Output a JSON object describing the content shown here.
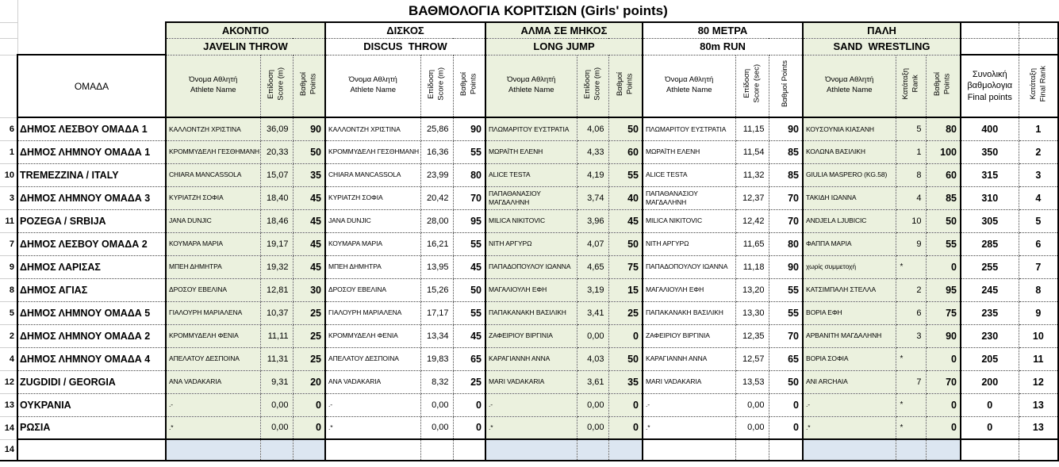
{
  "title": "ΒΑΘΜΟΛΟΓΙΑ ΚΟΡΙΤΣΙΩΝ (Girls' points)",
  "colors": {
    "group_fill": "#EBF1DE",
    "bottom_row_fill": "#DCE6F1"
  },
  "groups": [
    {
      "el": "ΑΚΟΝΤΙΟ",
      "en": "JAVELIN THROW"
    },
    {
      "el": "ΔΙΣΚΟΣ",
      "en": "DISCUS  THROW"
    },
    {
      "el": "ΑΛΜΑ ΣΕ ΜΗΚΟΣ",
      "en": "LONG JUMP"
    },
    {
      "el": "80 ΜΕΤΡΑ",
      "en": "80m RUN"
    },
    {
      "el": "ΠΑΛΗ",
      "en": "SAND  WRESTLING"
    }
  ],
  "headers": {
    "team": "ΟΜΑΔΑ",
    "athlete_name": "Όνομα Αθλητή\nAthlete Name",
    "score_m": "Επίδοση\nScore (m)",
    "score_sec": "Επίδοση\nScore (sec)",
    "points": "Βαθμοί\nPoints",
    "points_single": "Βαθμοί Points",
    "rank": "Κατάταξη\nRank",
    "final_points": "Συνολική\nβαθμολογια\nFinal points",
    "final_rank": "Κατάταξη\nFinal Rank"
  },
  "rows": [
    {
      "num": "6",
      "team": "ΔΗΜΟΣ ΛΕΣΒΟΥ ΟΜΑΔΑ 1",
      "javelin": {
        "name": "ΚΑΛΛΟΝΤΖΗ ΧΡΙΣΤΙΝΑ",
        "score": "36,09",
        "points": "90"
      },
      "discus": {
        "name": "ΚΑΛΛΟΝΤΖΗ ΧΡΙΣΤΙΝΑ",
        "score": "25,86",
        "points": "90"
      },
      "long_jump": {
        "name": "ΠΛΩΜΑΡΙΤΟΥ ΕΥΣΤΡΑΤΙΑ",
        "score": "4,06",
        "points": "50"
      },
      "run_80m": {
        "name": "ΠΛΩΜΑΡΙΤΟΥ ΕΥΣΤΡΑΤΙΑ",
        "score": "11,15",
        "points": "90"
      },
      "wrestling": {
        "name": "ΚΟΥΣΟΥΝΙΑ ΚΙΑΣΑΝΗ",
        "rank": "5",
        "points": "80"
      },
      "final_points": "400",
      "final_rank": "1"
    },
    {
      "num": "1",
      "team": "ΔΗΜΟΣ ΛΗΜΝΟΥ ΟΜΑΔΑ 1",
      "javelin": {
        "name": "ΚΡΟΜΜΥΔΕΛΗ ΓΕΣΘΗΜΑΝΗ",
        "score": "20,33",
        "points": "50"
      },
      "discus": {
        "name": "ΚΡΟΜΜΥΔΕΛΗ ΓΕΣΘΗΜΑΝΗ",
        "score": "16,36",
        "points": "55"
      },
      "long_jump": {
        "name": "ΜΩΡΑΪΤΗ ΕΛΕΝΗ",
        "score": "4,33",
        "points": "60"
      },
      "run_80m": {
        "name": "ΜΩΡΑΪΤΗ ΕΛΕΝΗ",
        "score": "11,54",
        "points": "85"
      },
      "wrestling": {
        "name": "ΚΟΛΩΝΑ ΒΑΣΙΛΙΚΗ",
        "rank": "1",
        "points": "100"
      },
      "final_points": "350",
      "final_rank": "2"
    },
    {
      "num": "10",
      "team": "TREMEZZINA / ITALY",
      "javelin": {
        "name": "CHIARA MANCASSOLA",
        "score": "15,07",
        "points": "35"
      },
      "discus": {
        "name": "CHIARA MANCASSOLA",
        "score": "23,99",
        "points": "80"
      },
      "long_jump": {
        "name": "ALICE TESTA",
        "score": "4,19",
        "points": "55"
      },
      "run_80m": {
        "name": "ALICE TESTA",
        "score": "11,32",
        "points": "85"
      },
      "wrestling": {
        "name": "GIULIA MASPERO (KG.58)",
        "rank": "8",
        "points": "60"
      },
      "final_points": "315",
      "final_rank": "3"
    },
    {
      "num": "3",
      "team": "ΔΗΜΟΣ ΛΗΜΝΟΥ ΟΜΑΔΑ 3",
      "javelin": {
        "name": "ΚΥΡΙΑΤΖΗ ΣΟΦΙΑ",
        "score": "18,40",
        "points": "45"
      },
      "discus": {
        "name": "ΚΥΡΙΑΤΖΗ ΣΟΦΙΑ",
        "score": "20,42",
        "points": "70"
      },
      "long_jump": {
        "name": "ΠΑΠΑΘΑΝΑΣΙΟΥ ΜΑΓΔΑΛΗΝΗ",
        "score": "3,74",
        "points": "40"
      },
      "run_80m": {
        "name": "ΠΑΠΑΘΑΝΑΣΙΟΥ ΜΑΓΔΑΛΗΝΗ",
        "score": "12,37",
        "points": "70"
      },
      "wrestling": {
        "name": "ΤΑΚΙΔΗ ΙΩΑΝΝΑ",
        "rank": "4",
        "points": "85"
      },
      "final_points": "310",
      "final_rank": "4"
    },
    {
      "num": "11",
      "team": "POZEGA / SRBIJA",
      "javelin": {
        "name": "JANA DUNJIC",
        "score": "18,46",
        "points": "45"
      },
      "discus": {
        "name": "JANA DUNJIC",
        "score": "28,00",
        "points": "95"
      },
      "long_jump": {
        "name": "MILICA NIKITOVIC",
        "score": "3,96",
        "points": "45"
      },
      "run_80m": {
        "name": "MILICA NIKITOVIC",
        "score": "12,42",
        "points": "70"
      },
      "wrestling": {
        "name": "ANDJELA LJUBICIC",
        "rank": "10",
        "points": "50"
      },
      "final_points": "305",
      "final_rank": "5"
    },
    {
      "num": "7",
      "team": "ΔΗΜΟΣ ΛΕΣΒΟΥ ΟΜΑΔΑ 2",
      "javelin": {
        "name": "ΚΟΥΜΑΡΑ ΜΑΡΙΑ",
        "score": "19,17",
        "points": "45"
      },
      "discus": {
        "name": "ΚΟΥΜΑΡΑ ΜΑΡΙΑ",
        "score": "16,21",
        "points": "55"
      },
      "long_jump": {
        "name": "ΝΙΤΗ ΑΡΓΥΡΩ",
        "score": "4,07",
        "points": "50"
      },
      "run_80m": {
        "name": "ΝΙΤΗ ΑΡΓΥΡΩ",
        "score": "11,65",
        "points": "80"
      },
      "wrestling": {
        "name": "ΦΑΠΠΑ ΜΑΡΙΑ",
        "rank": "9",
        "points": "55"
      },
      "final_points": "285",
      "final_rank": "6"
    },
    {
      "num": "9",
      "team": "ΔΗΜΟΣ ΛΑΡΙΣΑΣ",
      "javelin": {
        "name": "ΜΠΕΗ ΔΗΜΗΤΡΑ",
        "score": "19,32",
        "points": "45"
      },
      "discus": {
        "name": "ΜΠΕΗ ΔΗΜΗΤΡΑ",
        "score": "13,95",
        "points": "45"
      },
      "long_jump": {
        "name": "ΠΑΠΑΔΟΠΟΥΛΟΥ ΙΩΑΝΝΑ",
        "score": "4,65",
        "points": "75"
      },
      "run_80m": {
        "name": "ΠΑΠΑΔΟΠΟΥΛΟΥ ΙΩΑΝΝΑ",
        "score": "11,18",
        "points": "90"
      },
      "wrestling": {
        "name": "χωρίς συμμετοχή",
        "rank": "*",
        "points": "0"
      },
      "final_points": "255",
      "final_rank": "7"
    },
    {
      "num": "8",
      "team": "ΔΗΜΟΣ ΑΓΙΑΣ",
      "javelin": {
        "name": "ΔΡΟΣΟΥ ΕΒΕΛΙΝΑ",
        "score": "12,81",
        "points": "30"
      },
      "discus": {
        "name": "ΔΡΟΣΟΥ ΕΒΕΛΙΝΑ",
        "score": "15,26",
        "points": "50"
      },
      "long_jump": {
        "name": "ΜΑΓΑΛΙΟΥΛΗ ΕΦΗ",
        "score": "3,19",
        "points": "15"
      },
      "run_80m": {
        "name": "ΜΑΓΑΛΙΟΥΛΗ ΕΦΗ",
        "score": "13,20",
        "points": "55"
      },
      "wrestling": {
        "name": "ΚΑΤΣΙΜΠΑΛΗ ΣΤΕΛΛΑ",
        "rank": "2",
        "points": "95"
      },
      "final_points": "245",
      "final_rank": "8"
    },
    {
      "num": "5",
      "team": "ΔΗΜΟΣ ΛΗΜΝΟΥ ΟΜΑΔΑ 5",
      "javelin": {
        "name": "ΓΙΑΛΟΥΡΗ ΜΑΡΙΑΛΕΝΑ",
        "score": "10,37",
        "points": "25"
      },
      "discus": {
        "name": "ΓΙΑΛΟΥΡΗ ΜΑΡΙΑΛΕΝΑ",
        "score": "17,17",
        "points": "55"
      },
      "long_jump": {
        "name": "ΠΑΠΑΚΑΝΑΚΗ ΒΑΣΙΛΙΚΗ",
        "score": "3,41",
        "points": "25"
      },
      "run_80m": {
        "name": "ΠΑΠΑΚΑΝΑΚΗ ΒΑΣΙΛΙΚΗ",
        "score": "13,30",
        "points": "55"
      },
      "wrestling": {
        "name": "ΒΟΡΙΑ ΕΦΗ",
        "rank": "6",
        "points": "75"
      },
      "final_points": "235",
      "final_rank": "9"
    },
    {
      "num": "2",
      "team": "ΔΗΜΟΣ ΛΗΜΝΟΥ ΟΜΑΔΑ 2",
      "javelin": {
        "name": "ΚΡΟΜΜΥΔΕΛΗ ΦΕΝΙΑ",
        "score": "11,11",
        "points": "25"
      },
      "discus": {
        "name": "ΚΡΟΜΜΥΔΕΛΗ ΦΕΝΙΑ",
        "score": "13,34",
        "points": "45"
      },
      "long_jump": {
        "name": "ΖΑΦΕΙΡΙΟΥ ΒΙΡΓΙΝΙΑ",
        "score": "0,00",
        "points": "0"
      },
      "run_80m": {
        "name": "ΖΑΦΕΙΡΙΟΥ ΒΙΡΓΙΝΙΑ",
        "score": "12,35",
        "points": "70"
      },
      "wrestling": {
        "name": "ΑΡΒΑΝΙΤΗ ΜΑΓΔΑΛΗΝΗ",
        "rank": "3",
        "points": "90"
      },
      "final_points": "230",
      "final_rank": "10"
    },
    {
      "num": "4",
      "team": "ΔΗΜΟΣ ΛΗΜΝΟΥ ΟΜΑΔΑ 4",
      "javelin": {
        "name": "ΑΠΕΛΑΤΟΥ ΔΕΣΠΟΙΝΑ",
        "score": "11,31",
        "points": "25"
      },
      "discus": {
        "name": "ΑΠΕΛΑΤΟΥ ΔΕΣΠΟΙΝΑ",
        "score": "19,83",
        "points": "65"
      },
      "long_jump": {
        "name": "ΚΑΡΑΓΙΑΝΝΗ ΑΝΝΑ",
        "score": "4,03",
        "points": "50"
      },
      "run_80m": {
        "name": "ΚΑΡΑΓΙΑΝΝΗ ΑΝΝΑ",
        "score": "12,57",
        "points": "65"
      },
      "wrestling": {
        "name": "ΒΟΡΙΑ ΣΟΦΙΑ",
        "rank": "*",
        "points": "0"
      },
      "final_points": "205",
      "final_rank": "11"
    },
    {
      "num": "12",
      "team": "ZUGDIDI / GEORGIA",
      "javelin": {
        "name": "ANA VADAKARIA",
        "score": "9,31",
        "points": "20"
      },
      "discus": {
        "name": "ANA VADAKARIA",
        "score": "8,32",
        "points": "25"
      },
      "long_jump": {
        "name": "MARI VADAKARIA",
        "score": "3,61",
        "points": "35"
      },
      "run_80m": {
        "name": "MARI VADAKARIA",
        "score": "13,53",
        "points": "50"
      },
      "wrestling": {
        "name": "ANI ARCHAIA",
        "rank": "7",
        "points": "70"
      },
      "final_points": "200",
      "final_rank": "12"
    },
    {
      "num": "13",
      "team": "ΟΥΚΡΑΝΙΑ",
      "javelin": {
        "name": ".-",
        "score": "0,00",
        "points": "0"
      },
      "discus": {
        "name": ".-",
        "score": "0,00",
        "points": "0"
      },
      "long_jump": {
        "name": ".-",
        "score": "0,00",
        "points": "0"
      },
      "run_80m": {
        "name": ".-",
        "score": "0,00",
        "points": "0"
      },
      "wrestling": {
        "name": ".-",
        "rank": "*",
        "points": "0"
      },
      "final_points": "0",
      "final_rank": "13"
    },
    {
      "num": "14",
      "team": "ΡΩΣΙΑ",
      "javelin": {
        "name": ".*",
        "score": "0,00",
        "points": "0"
      },
      "discus": {
        "name": ".*",
        "score": "0,00",
        "points": "0"
      },
      "long_jump": {
        "name": ".*",
        "score": "0,00",
        "points": "0"
      },
      "run_80m": {
        "name": ".*",
        "score": "0,00",
        "points": "0"
      },
      "wrestling": {
        "name": ".*",
        "rank": "*",
        "points": "0"
      },
      "final_points": "0",
      "final_rank": "13"
    }
  ],
  "bottom_row": {
    "num": "14"
  }
}
